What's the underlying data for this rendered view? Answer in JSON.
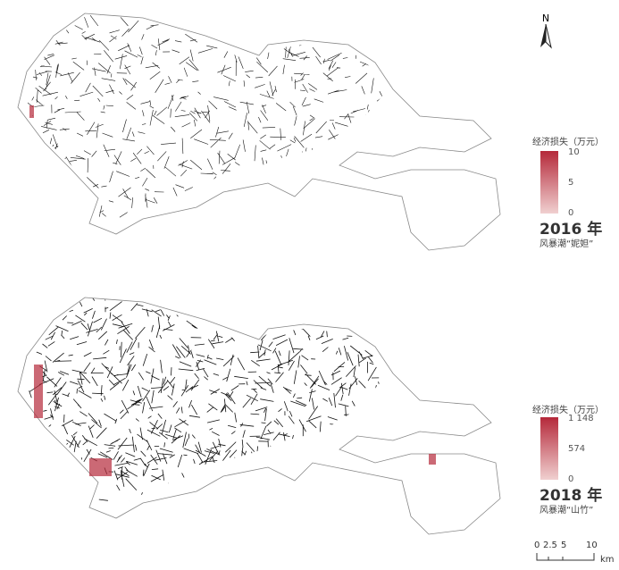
{
  "north_arrow": {
    "label": "N"
  },
  "maps": [
    {
      "legend_title": "经济损失（万元）",
      "max": "10",
      "mid": "5",
      "min": "0",
      "year": "2016 年",
      "storm": "风暴潮“妮妲”",
      "ramp_colors": [
        "#b5293a",
        "#f0d0d0"
      ]
    },
    {
      "legend_title": "经济损失（万元）",
      "max": "1 148",
      "mid": "574",
      "min": "0",
      "year": "2018 年",
      "storm": "风暴潮“山竹”",
      "ramp_colors": [
        "#b5293a",
        "#f0d0d0"
      ]
    }
  ],
  "scale_bar": {
    "ticks": [
      "0",
      "2.5",
      "5",
      "10"
    ],
    "unit": "km"
  }
}
